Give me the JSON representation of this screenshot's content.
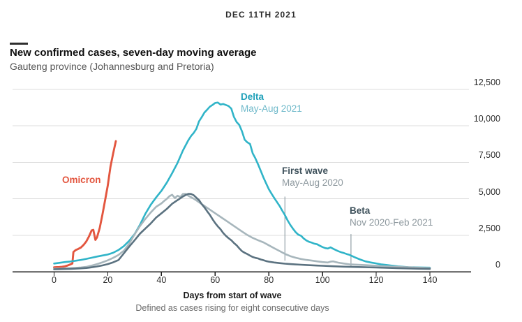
{
  "header": {
    "date": "DEC 11TH 2021"
  },
  "title": "New confirmed cases, seven-day moving average",
  "subtitle": "Gauteng province (Johannesburg and Pretoria)",
  "footer": {
    "xlabel": "Days from start of wave",
    "note": "Defined as cases rising for eight consecutive days"
  },
  "colors": {
    "omicron": "#E3563F",
    "delta": "#30B4C8",
    "first_wave": "#A7B6BC",
    "beta": "#5B7280",
    "gridline": "#DCDCDC",
    "axis": "#1A1A1A",
    "leader": "#9AA7AD"
  },
  "chart_data": {
    "type": "line",
    "title": "New confirmed cases, seven-day moving average",
    "xlabel": "Days from start of wave",
    "ylabel": "",
    "xlim": [
      0,
      140
    ],
    "ylim": [
      0,
      12500
    ],
    "x_ticks": [
      0,
      20,
      40,
      60,
      80,
      100,
      120,
      140
    ],
    "y_ticks": [
      0,
      2500,
      5000,
      7500,
      10000,
      12500
    ],
    "y_tick_labels": [
      "0",
      "2,500",
      "5,000",
      "7,500",
      "10,000",
      "12,500"
    ],
    "grid": "horizontal",
    "legend_position": "inline annotations",
    "series": [
      {
        "name": "Omicron",
        "label": "Omicron",
        "sublabel": "",
        "color": "#E3563F",
        "points": [
          [
            0,
            300
          ],
          [
            1,
            310
          ],
          [
            2,
            320
          ],
          [
            3,
            340
          ],
          [
            4,
            370
          ],
          [
            5,
            420
          ],
          [
            6,
            500
          ],
          [
            6.8,
            560
          ],
          [
            7.2,
            1350
          ],
          [
            8,
            1480
          ],
          [
            9,
            1560
          ],
          [
            10,
            1660
          ],
          [
            11,
            1840
          ],
          [
            12,
            2080
          ],
          [
            13,
            2420
          ],
          [
            14,
            2830
          ],
          [
            14.6,
            2870
          ],
          [
            15.4,
            2180
          ],
          [
            16,
            2350
          ],
          [
            17,
            3000
          ],
          [
            18,
            3900
          ],
          [
            19,
            4900
          ],
          [
            20,
            5900
          ],
          [
            21,
            7200
          ],
          [
            22,
            8100
          ],
          [
            23,
            8950
          ]
        ]
      },
      {
        "name": "Delta",
        "label": "Delta",
        "sublabel": "May-Aug 2021",
        "color": "#30B4C8",
        "points": [
          [
            0,
            560
          ],
          [
            2,
            610
          ],
          [
            4,
            660
          ],
          [
            6,
            700
          ],
          [
            8,
            750
          ],
          [
            10,
            810
          ],
          [
            12,
            880
          ],
          [
            14,
            960
          ],
          [
            16,
            1040
          ],
          [
            18,
            1110
          ],
          [
            20,
            1180
          ],
          [
            22,
            1300
          ],
          [
            24,
            1490
          ],
          [
            26,
            1760
          ],
          [
            28,
            2120
          ],
          [
            30,
            2580
          ],
          [
            32,
            3220
          ],
          [
            34,
            3970
          ],
          [
            36,
            4590
          ],
          [
            38,
            5090
          ],
          [
            40,
            5550
          ],
          [
            42,
            6110
          ],
          [
            44,
            6760
          ],
          [
            46,
            7460
          ],
          [
            48,
            8310
          ],
          [
            50,
            9010
          ],
          [
            51,
            9300
          ],
          [
            52,
            9510
          ],
          [
            53,
            9800
          ],
          [
            54,
            10310
          ],
          [
            55,
            10600
          ],
          [
            56,
            10910
          ],
          [
            57,
            11100
          ],
          [
            58,
            11310
          ],
          [
            59,
            11430
          ],
          [
            60,
            11570
          ],
          [
            61,
            11600
          ],
          [
            62,
            11460
          ],
          [
            63,
            11500
          ],
          [
            64,
            11430
          ],
          [
            65,
            11360
          ],
          [
            66,
            11190
          ],
          [
            67,
            10620
          ],
          [
            68,
            10260
          ],
          [
            69,
            10060
          ],
          [
            70,
            9620
          ],
          [
            71,
            9050
          ],
          [
            72,
            8870
          ],
          [
            73,
            8760
          ],
          [
            74,
            8120
          ],
          [
            75,
            7770
          ],
          [
            76,
            7360
          ],
          [
            77,
            6910
          ],
          [
            78,
            6460
          ],
          [
            79,
            6050
          ],
          [
            80,
            5660
          ],
          [
            81,
            5350
          ],
          [
            82,
            5060
          ],
          [
            83,
            4780
          ],
          [
            84,
            4510
          ],
          [
            85,
            4190
          ],
          [
            86,
            3880
          ],
          [
            87,
            3520
          ],
          [
            88,
            3210
          ],
          [
            89,
            2950
          ],
          [
            90,
            2710
          ],
          [
            91,
            2540
          ],
          [
            92,
            2460
          ],
          [
            93,
            2280
          ],
          [
            94,
            2140
          ],
          [
            95,
            2050
          ],
          [
            96,
            1990
          ],
          [
            97,
            1920
          ],
          [
            98,
            1880
          ],
          [
            99,
            1780
          ],
          [
            100,
            1690
          ],
          [
            101,
            1620
          ],
          [
            102,
            1590
          ],
          [
            103,
            1670
          ],
          [
            104,
            1570
          ],
          [
            105,
            1480
          ],
          [
            106,
            1400
          ],
          [
            107,
            1330
          ],
          [
            108,
            1280
          ],
          [
            109,
            1210
          ],
          [
            110,
            1160
          ],
          [
            112,
            990
          ],
          [
            114,
            840
          ],
          [
            116,
            710
          ],
          [
            118,
            630
          ],
          [
            120,
            570
          ],
          [
            122,
            500
          ],
          [
            124,
            460
          ],
          [
            126,
            410
          ],
          [
            128,
            370
          ],
          [
            130,
            340
          ],
          [
            132,
            310
          ],
          [
            134,
            300
          ],
          [
            136,
            290
          ],
          [
            138,
            285
          ],
          [
            140,
            280
          ]
        ]
      },
      {
        "name": "First wave",
        "label": "First wave",
        "sublabel": "May-Aug 2020",
        "color": "#A7B6BC",
        "points": [
          [
            0,
            210
          ],
          [
            2,
            215
          ],
          [
            4,
            230
          ],
          [
            6,
            245
          ],
          [
            8,
            265
          ],
          [
            10,
            290
          ],
          [
            12,
            330
          ],
          [
            14,
            420
          ],
          [
            16,
            520
          ],
          [
            18,
            640
          ],
          [
            20,
            780
          ],
          [
            22,
            950
          ],
          [
            24,
            1150
          ],
          [
            26,
            1440
          ],
          [
            28,
            1920
          ],
          [
            30,
            2560
          ],
          [
            32,
            3130
          ],
          [
            34,
            3620
          ],
          [
            36,
            4060
          ],
          [
            38,
            4450
          ],
          [
            40,
            4690
          ],
          [
            41,
            4850
          ],
          [
            42,
            5000
          ],
          [
            43,
            5180
          ],
          [
            44,
            5280
          ],
          [
            45,
            5050
          ],
          [
            46,
            5210
          ],
          [
            47,
            5120
          ],
          [
            48,
            5330
          ],
          [
            49,
            5340
          ],
          [
            50,
            5210
          ],
          [
            51,
            5110
          ],
          [
            52,
            5010
          ],
          [
            53,
            4890
          ],
          [
            54,
            4760
          ],
          [
            56,
            4510
          ],
          [
            58,
            4260
          ],
          [
            60,
            4010
          ],
          [
            62,
            3760
          ],
          [
            64,
            3510
          ],
          [
            66,
            3260
          ],
          [
            68,
            3010
          ],
          [
            70,
            2760
          ],
          [
            72,
            2520
          ],
          [
            74,
            2320
          ],
          [
            76,
            2160
          ],
          [
            78,
            2010
          ],
          [
            80,
            1810
          ],
          [
            82,
            1610
          ],
          [
            84,
            1420
          ],
          [
            86,
            1220
          ],
          [
            88,
            1070
          ],
          [
            90,
            960
          ],
          [
            92,
            870
          ],
          [
            94,
            810
          ],
          [
            96,
            760
          ],
          [
            98,
            710
          ],
          [
            100,
            660
          ],
          [
            102,
            630
          ],
          [
            103,
            690
          ],
          [
            104,
            710
          ],
          [
            105,
            660
          ],
          [
            106,
            620
          ],
          [
            108,
            560
          ],
          [
            110,
            510
          ],
          [
            112,
            490
          ],
          [
            114,
            470
          ],
          [
            116,
            450
          ],
          [
            118,
            430
          ],
          [
            120,
            410
          ],
          [
            122,
            390
          ],
          [
            124,
            370
          ],
          [
            126,
            350
          ],
          [
            128,
            340
          ],
          [
            130,
            320
          ],
          [
            132,
            310
          ],
          [
            134,
            290
          ],
          [
            136,
            280
          ],
          [
            138,
            260
          ],
          [
            140,
            250
          ]
        ]
      },
      {
        "name": "Beta",
        "label": "Beta",
        "sublabel": "Nov 2020-Feb 2021",
        "color": "#5B7280",
        "points": [
          [
            0,
            170
          ],
          [
            2,
            175
          ],
          [
            4,
            185
          ],
          [
            6,
            195
          ],
          [
            8,
            210
          ],
          [
            10,
            230
          ],
          [
            12,
            255
          ],
          [
            14,
            300
          ],
          [
            16,
            360
          ],
          [
            18,
            430
          ],
          [
            20,
            520
          ],
          [
            22,
            640
          ],
          [
            24,
            800
          ],
          [
            26,
            1260
          ],
          [
            28,
            1720
          ],
          [
            30,
            2160
          ],
          [
            32,
            2610
          ],
          [
            34,
            2960
          ],
          [
            36,
            3310
          ],
          [
            38,
            3710
          ],
          [
            40,
            4010
          ],
          [
            42,
            4310
          ],
          [
            44,
            4660
          ],
          [
            46,
            4910
          ],
          [
            48,
            5160
          ],
          [
            49,
            5260
          ],
          [
            50,
            5340
          ],
          [
            51,
            5330
          ],
          [
            52,
            5250
          ],
          [
            53,
            5070
          ],
          [
            54,
            4910
          ],
          [
            55,
            4630
          ],
          [
            56,
            4410
          ],
          [
            57,
            4150
          ],
          [
            58,
            3910
          ],
          [
            59,
            3610
          ],
          [
            60,
            3340
          ],
          [
            61,
            3110
          ],
          [
            62,
            2910
          ],
          [
            63,
            2660
          ],
          [
            64,
            2460
          ],
          [
            65,
            2300
          ],
          [
            66,
            2160
          ],
          [
            67,
            1970
          ],
          [
            68,
            1810
          ],
          [
            69,
            1600
          ],
          [
            70,
            1410
          ],
          [
            71,
            1300
          ],
          [
            72,
            1210
          ],
          [
            73,
            1100
          ],
          [
            74,
            1010
          ],
          [
            75,
            950
          ],
          [
            76,
            910
          ],
          [
            77,
            840
          ],
          [
            78,
            790
          ],
          [
            79,
            730
          ],
          [
            80,
            690
          ],
          [
            82,
            630
          ],
          [
            84,
            590
          ],
          [
            86,
            550
          ],
          [
            88,
            520
          ],
          [
            90,
            500
          ],
          [
            92,
            480
          ],
          [
            94,
            460
          ],
          [
            96,
            440
          ],
          [
            98,
            420
          ],
          [
            100,
            405
          ],
          [
            104,
            375
          ],
          [
            108,
            345
          ],
          [
            112,
            325
          ],
          [
            116,
            305
          ],
          [
            120,
            285
          ],
          [
            124,
            265
          ],
          [
            128,
            245
          ],
          [
            132,
            225
          ],
          [
            136,
            205
          ],
          [
            140,
            195
          ]
        ]
      }
    ],
    "leader_lines": [
      {
        "for": "First wave",
        "day": 86,
        "from_value": 5150,
        "to_value": 760
      },
      {
        "for": "Beta",
        "day": 110.6,
        "from_value": 2580,
        "to_value": 350
      }
    ]
  }
}
